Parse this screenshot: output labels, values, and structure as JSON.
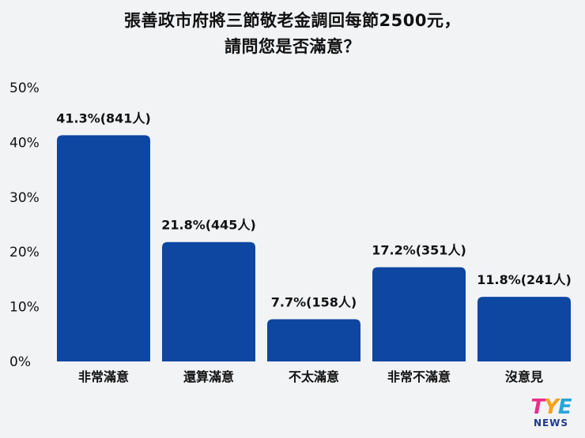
{
  "chart_data": {
    "type": "bar",
    "title_lines": [
      "張善政市府將三節敬老金調回每節2500元，",
      "請問您是否滿意？"
    ],
    "categories": [
      "非常滿意",
      "還算滿意",
      "不太滿意",
      "非常不滿意",
      "沒意見"
    ],
    "values": [
      41.3,
      21.8,
      7.7,
      17.2,
      11.8
    ],
    "data_labels": [
      "41.3%(841人)",
      "21.8%(445人)",
      "7.7%(158人)",
      "17.2%(351人)",
      "11.8%(241人)"
    ],
    "yticks": [
      "0%",
      "10%",
      "20%",
      "30%",
      "40%",
      "50%"
    ],
    "ylim": [
      0,
      50
    ],
    "grid": false,
    "bar_color": "#0d47a1"
  },
  "logo": {
    "mark_t": "T",
    "mark_y": "Y",
    "mark_e": "E",
    "sub": "NEWS"
  }
}
